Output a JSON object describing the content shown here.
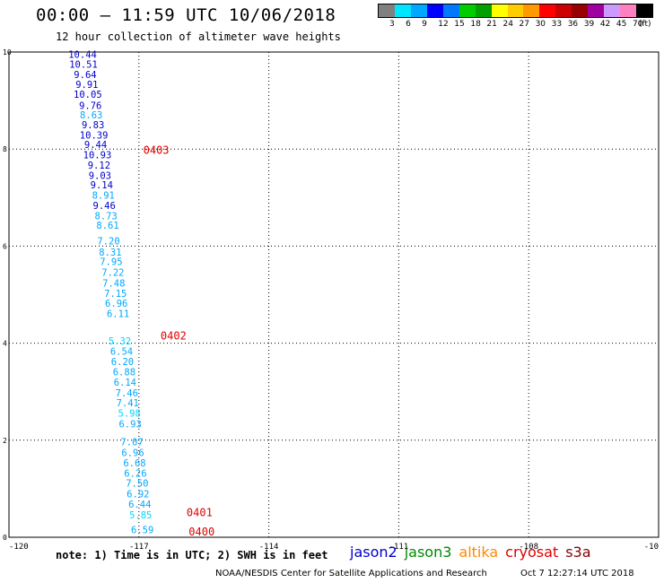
{
  "header": {
    "title": "00:00 – 11:59 UTC 10/06/2018",
    "subtitle": "12 hour collection of altimeter wave heights"
  },
  "colorbar": {
    "colors": [
      "#808080",
      "#00e5ff",
      "#00a8ff",
      "#0000ff",
      "#0078ff",
      "#00cc00",
      "#00a000",
      "#ffff00",
      "#ffcc00",
      "#ff9900",
      "#ff0000",
      "#cc0000",
      "#990000",
      "#a000a0",
      "#cc99ff",
      "#ff80c0",
      "#000000"
    ],
    "labels": [
      "3",
      "6",
      "9",
      "12",
      "15",
      "18",
      "21",
      "24",
      "27",
      "30",
      "33",
      "36",
      "39",
      "42",
      "45",
      "70"
    ],
    "unit": "(ft)"
  },
  "map": {
    "lon_ticks": [
      "-120",
      "-117",
      "-114",
      "-111",
      "-108",
      "-10"
    ],
    "lat_ticks": [
      "10",
      "8",
      "6",
      "4",
      "2",
      "0"
    ],
    "grid": true,
    "track_labels": [
      {
        "text": "0403",
        "color": "#e00000"
      },
      {
        "text": "0402",
        "color": "#e00000"
      },
      {
        "text": "0401",
        "color": "#e00000"
      },
      {
        "text": "0400",
        "color": "#e00000"
      }
    ],
    "observations": [
      {
        "lon": -118.3,
        "lat": 9.95,
        "swh": "10.44",
        "color": "#0000cc"
      },
      {
        "lon": -118.28,
        "lat": 9.75,
        "swh": "10.51",
        "color": "#0000cc"
      },
      {
        "lon": -118.24,
        "lat": 9.54,
        "swh": "9.64",
        "color": "#0000cc"
      },
      {
        "lon": -118.2,
        "lat": 9.33,
        "swh": "9.91",
        "color": "#0000cc"
      },
      {
        "lon": -118.18,
        "lat": 9.13,
        "swh": "10.05",
        "color": "#0000cc"
      },
      {
        "lon": -118.12,
        "lat": 8.9,
        "swh": "9.76",
        "color": "#0000cc"
      },
      {
        "lon": -118.1,
        "lat": 8.71,
        "swh": "8.63",
        "color": "#00a8ff"
      },
      {
        "lon": -118.06,
        "lat": 8.5,
        "swh": "9.83",
        "color": "#0000cc"
      },
      {
        "lon": -118.04,
        "lat": 8.29,
        "swh": "10.39",
        "color": "#0000cc"
      },
      {
        "lon": -118.0,
        "lat": 8.1,
        "swh": "9.44",
        "color": "#0000cc"
      },
      {
        "lon": -117.96,
        "lat": 7.88,
        "swh": "10.93",
        "color": "#0000cc"
      },
      {
        "lon": -117.92,
        "lat": 7.67,
        "swh": "9.12",
        "color": "#0000cc"
      },
      {
        "lon": -117.9,
        "lat": 7.46,
        "swh": "9.03",
        "color": "#0000cc"
      },
      {
        "lon": -117.86,
        "lat": 7.26,
        "swh": "9.14",
        "color": "#0000cc"
      },
      {
        "lon": -117.82,
        "lat": 7.05,
        "swh": "8.91",
        "color": "#00a8ff"
      },
      {
        "lon": -117.8,
        "lat": 6.84,
        "swh": "9.46",
        "color": "#0000cc"
      },
      {
        "lon": -117.76,
        "lat": 6.63,
        "swh": "8.73",
        "color": "#00a8ff"
      },
      {
        "lon": -117.72,
        "lat": 6.43,
        "swh": "8.61",
        "color": "#00a8ff"
      },
      {
        "lon": -117.7,
        "lat": 6.11,
        "swh": "7.20",
        "color": "#00a8ff"
      },
      {
        "lon": -117.66,
        "lat": 5.88,
        "swh": "8.31",
        "color": "#00a8ff"
      },
      {
        "lon": -117.64,
        "lat": 5.68,
        "swh": "7.95",
        "color": "#00a8ff"
      },
      {
        "lon": -117.6,
        "lat": 5.46,
        "swh": "7.22",
        "color": "#00a8ff"
      },
      {
        "lon": -117.58,
        "lat": 5.24,
        "swh": "7.48",
        "color": "#00a8ff"
      },
      {
        "lon": -117.54,
        "lat": 5.03,
        "swh": "7.15",
        "color": "#00a8ff"
      },
      {
        "lon": -117.52,
        "lat": 4.82,
        "swh": "6.96",
        "color": "#00a8ff"
      },
      {
        "lon": -117.48,
        "lat": 4.61,
        "swh": "6.11",
        "color": "#00a8ff"
      },
      {
        "lon": -117.44,
        "lat": 4.05,
        "swh": "5.32",
        "color": "#00d8ff"
      },
      {
        "lon": -117.4,
        "lat": 3.84,
        "swh": "6.54",
        "color": "#00a8ff"
      },
      {
        "lon": -117.38,
        "lat": 3.62,
        "swh": "6.20",
        "color": "#00a8ff"
      },
      {
        "lon": -117.34,
        "lat": 3.41,
        "swh": "6.88",
        "color": "#00a8ff"
      },
      {
        "lon": -117.32,
        "lat": 3.2,
        "swh": "6.14",
        "color": "#00a8ff"
      },
      {
        "lon": -117.28,
        "lat": 2.98,
        "swh": "7.46",
        "color": "#00a8ff"
      },
      {
        "lon": -117.26,
        "lat": 2.77,
        "swh": "7.41",
        "color": "#00a8ff"
      },
      {
        "lon": -117.22,
        "lat": 2.56,
        "swh": "5.98",
        "color": "#00d8ff"
      },
      {
        "lon": -117.2,
        "lat": 2.34,
        "swh": "6.93",
        "color": "#00a8ff"
      },
      {
        "lon": -117.16,
        "lat": 1.97,
        "swh": "7.07",
        "color": "#00a8ff"
      },
      {
        "lon": -117.14,
        "lat": 1.75,
        "swh": "6.96",
        "color": "#00a8ff"
      },
      {
        "lon": -117.1,
        "lat": 1.53,
        "swh": "6.68",
        "color": "#00a8ff"
      },
      {
        "lon": -117.08,
        "lat": 1.32,
        "swh": "6.26",
        "color": "#00a8ff"
      },
      {
        "lon": -117.04,
        "lat": 1.12,
        "swh": "7.50",
        "color": "#00a8ff"
      },
      {
        "lon": -117.02,
        "lat": 0.9,
        "swh": "6.92",
        "color": "#00a8ff"
      },
      {
        "lon": -116.98,
        "lat": 0.68,
        "swh": "6.44",
        "color": "#00a8ff"
      },
      {
        "lon": -116.96,
        "lat": 0.46,
        "swh": "5.85",
        "color": "#00d8ff"
      },
      {
        "lon": -116.92,
        "lat": 0.16,
        "swh": "6.59",
        "color": "#00a8ff"
      }
    ]
  },
  "footer": {
    "note": "note: 1) Time is in UTC; 2) SWH is in feet",
    "satellites": [
      {
        "name": "jason2",
        "color": "#0000cc"
      },
      {
        "name": "jason3",
        "color": "#008800"
      },
      {
        "name": "altika",
        "color": "#ff8800"
      },
      {
        "name": "cryosat",
        "color": "#dd0000"
      },
      {
        "name": "s3a",
        "color": "#880000"
      }
    ],
    "credit": "NOAA/NESDIS Center for Satellite Applications and Research",
    "timestamp": "Oct  7 12:27:14 UTC 2018"
  }
}
